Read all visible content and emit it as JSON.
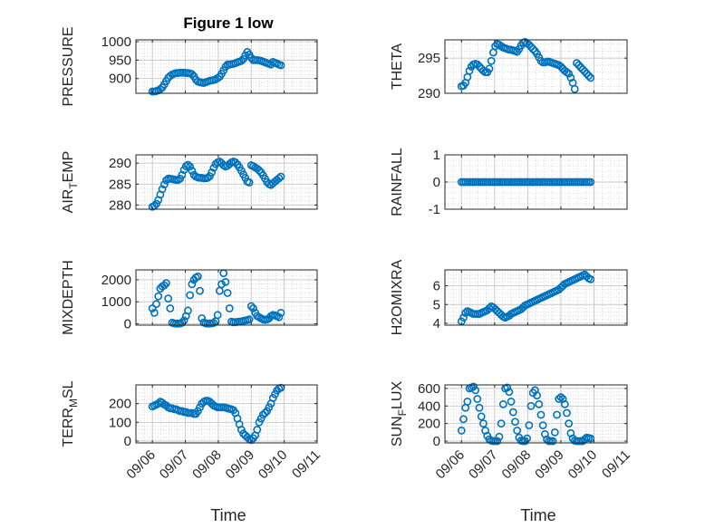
{
  "figure_title": "Figure 1 low",
  "colors": {
    "marker": "#0072BD",
    "axis": "#262626",
    "grid": "#d4d4d4",
    "background": "#ffffff"
  },
  "chart_data": [
    {
      "type": "scatter",
      "ylabel": "PRESSURE",
      "ylim": [
        860,
        1005
      ],
      "yticks": [
        900,
        950,
        1000
      ],
      "grid": true,
      "x": [
        0.0,
        0.06,
        0.12,
        0.18,
        0.24,
        0.3,
        0.36,
        0.42,
        0.48,
        0.54,
        0.6,
        0.66,
        0.72,
        0.78,
        0.84,
        0.9,
        0.96,
        1.02,
        1.08,
        1.14,
        1.2,
        1.26,
        1.32,
        1.38,
        1.44,
        1.5,
        1.56,
        1.62,
        1.68,
        1.74,
        1.8,
        1.86,
        1.92,
        1.98,
        2.04,
        2.1,
        2.16,
        2.22,
        2.28,
        2.34,
        2.4,
        2.46,
        2.52,
        2.58,
        2.64,
        2.7,
        2.76,
        2.82,
        2.88,
        2.94,
        3.0,
        3.06,
        3.12,
        3.18,
        3.24,
        3.3,
        3.36,
        3.42,
        3.48,
        3.54,
        3.6,
        3.66,
        3.72,
        3.78,
        3.84,
        3.9
      ],
      "values": [
        865,
        865,
        866,
        868,
        871,
        876,
        884,
        893,
        902,
        907,
        911,
        913,
        915,
        915,
        916,
        916,
        916,
        915,
        915,
        914,
        912,
        906,
        897,
        892,
        890,
        889,
        888,
        890,
        892,
        894,
        895,
        896,
        898,
        901,
        905,
        913,
        922,
        932,
        938,
        938,
        939,
        940,
        942,
        944,
        946,
        948,
        953,
        963,
        972,
        965,
        956,
        950,
        950,
        950,
        949,
        948,
        946,
        944,
        942,
        940,
        938,
        945,
        943,
        941,
        938,
        936
      ],
      "xticks": [
        "09/06",
        "09/07",
        "09/08",
        "09/09",
        "09/10",
        "09/11"
      ]
    },
    {
      "type": "scatter",
      "ylabel": "THETA",
      "ylim": [
        290,
        297.6
      ],
      "yticks": [
        290,
        295
      ],
      "grid": true,
      "x": [
        0.0,
        0.06,
        0.12,
        0.18,
        0.24,
        0.3,
        0.36,
        0.42,
        0.48,
        0.54,
        0.6,
        0.66,
        0.72,
        0.78,
        0.84,
        0.9,
        0.96,
        1.02,
        1.08,
        1.14,
        1.2,
        1.26,
        1.32,
        1.38,
        1.44,
        1.5,
        1.56,
        1.62,
        1.68,
        1.74,
        1.8,
        1.86,
        1.92,
        1.98,
        2.04,
        2.1,
        2.16,
        2.22,
        2.28,
        2.34,
        2.4,
        2.46,
        2.52,
        2.58,
        2.64,
        2.7,
        2.76,
        2.82,
        2.88,
        2.94,
        3.0,
        3.06,
        3.12,
        3.18,
        3.24,
        3.3,
        3.36,
        3.42,
        3.48,
        3.54,
        3.6,
        3.66,
        3.72,
        3.78,
        3.84,
        3.9
      ],
      "values": [
        291.0,
        291.1,
        291.5,
        292.3,
        293.2,
        293.8,
        294.1,
        294.2,
        294.1,
        293.8,
        293.5,
        293.2,
        293.0,
        293.0,
        293.5,
        294.6,
        295.8,
        296.7,
        297.0,
        296.9,
        296.7,
        296.5,
        296.4,
        296.3,
        296.2,
        296.2,
        296.1,
        296.0,
        295.9,
        296.3,
        296.8,
        297.2,
        297.3,
        297.1,
        296.9,
        296.6,
        296.3,
        296.0,
        295.6,
        295.1,
        294.6,
        294.4,
        294.4,
        294.5,
        294.5,
        294.4,
        294.3,
        294.2,
        294.1,
        294.0,
        293.8,
        293.5,
        293.2,
        293.0,
        292.8,
        292.2,
        291.5,
        290.6,
        294.3,
        294.0,
        293.7,
        293.4,
        293.1,
        292.8,
        292.5,
        292.2
      ],
      "xticks": [
        "09/06",
        "09/07",
        "09/08",
        "09/09",
        "09/10",
        "09/11"
      ]
    },
    {
      "type": "scatter",
      "ylabel": "AIR_TEMP",
      "ylim": [
        279,
        292
      ],
      "yticks": [
        280,
        285,
        290
      ],
      "grid": true,
      "x": [
        0.0,
        0.06,
        0.12,
        0.18,
        0.24,
        0.3,
        0.36,
        0.42,
        0.48,
        0.54,
        0.6,
        0.66,
        0.72,
        0.78,
        0.84,
        0.9,
        0.96,
        1.02,
        1.08,
        1.14,
        1.2,
        1.26,
        1.32,
        1.38,
        1.44,
        1.5,
        1.56,
        1.62,
        1.68,
        1.74,
        1.8,
        1.86,
        1.92,
        1.98,
        2.04,
        2.1,
        2.16,
        2.22,
        2.28,
        2.34,
        2.4,
        2.46,
        2.52,
        2.58,
        2.64,
        2.7,
        2.76,
        2.82,
        2.88,
        2.94,
        3.0,
        3.06,
        3.12,
        3.18,
        3.24,
        3.3,
        3.36,
        3.42,
        3.48,
        3.54,
        3.6,
        3.66,
        3.72,
        3.78,
        3.84,
        3.9
      ],
      "values": [
        279.6,
        279.8,
        280.3,
        281.2,
        282.5,
        283.8,
        284.9,
        285.9,
        286.3,
        286.3,
        286.2,
        286.1,
        286.0,
        286.0,
        286.3,
        287.2,
        288.4,
        289.3,
        289.6,
        289.2,
        288.2,
        287.2,
        286.8,
        286.6,
        286.5,
        286.5,
        286.4,
        286.4,
        286.5,
        286.9,
        287.8,
        288.9,
        289.8,
        290.2,
        290.4,
        290.0,
        289.5,
        289.2,
        289.4,
        289.8,
        290.2,
        290.4,
        290.2,
        289.7,
        289.0,
        288.2,
        287.3,
        286.5,
        285.6,
        285.4,
        289.5,
        289.3,
        289.0,
        288.7,
        288.3,
        287.8,
        287.1,
        286.3,
        285.5,
        285.0,
        284.8,
        285.2,
        285.6,
        286.0,
        286.4,
        286.8
      ],
      "xticks": [
        "09/06",
        "09/07",
        "09/08",
        "09/09",
        "09/10",
        "09/11"
      ]
    },
    {
      "type": "scatter",
      "ylabel": "RAINFALL",
      "ylim": [
        -1,
        1
      ],
      "yticks": [
        -1,
        0,
        1
      ],
      "grid": true,
      "x": [
        0.0,
        0.06,
        0.12,
        0.18,
        0.24,
        0.3,
        0.36,
        0.42,
        0.48,
        0.54,
        0.6,
        0.66,
        0.72,
        0.78,
        0.84,
        0.9,
        0.96,
        1.02,
        1.08,
        1.14,
        1.2,
        1.26,
        1.32,
        1.38,
        1.44,
        1.5,
        1.56,
        1.62,
        1.68,
        1.74,
        1.8,
        1.86,
        1.92,
        1.98,
        2.04,
        2.1,
        2.16,
        2.22,
        2.28,
        2.34,
        2.4,
        2.46,
        2.52,
        2.58,
        2.64,
        2.7,
        2.76,
        2.82,
        2.88,
        2.94,
        3.0,
        3.06,
        3.12,
        3.18,
        3.24,
        3.3,
        3.36,
        3.42,
        3.48,
        3.54,
        3.6,
        3.66,
        3.72,
        3.78,
        3.84,
        3.9
      ],
      "values": [
        0,
        0,
        0,
        0,
        0,
        0,
        0,
        0,
        0,
        0,
        0,
        0,
        0,
        0,
        0,
        0,
        0,
        0,
        0,
        0,
        0,
        0,
        0,
        0,
        0,
        0,
        0,
        0,
        0,
        0,
        0,
        0,
        0,
        0,
        0,
        0,
        0,
        0,
        0,
        0,
        0,
        0,
        0,
        0,
        0,
        0,
        0,
        0,
        0,
        0,
        0,
        0,
        0,
        0,
        0,
        0,
        0,
        0,
        0,
        0,
        0,
        0,
        0,
        0,
        0,
        0
      ],
      "xticks": [
        "09/06",
        "09/07",
        "09/08",
        "09/09",
        "09/10",
        "09/11"
      ]
    },
    {
      "type": "scatter",
      "ylabel": "MIXDEPTH",
      "ylim": [
        -60,
        2450
      ],
      "yticks": [
        0,
        1000,
        2000
      ],
      "grid": true,
      "x": [
        0.0,
        0.06,
        0.12,
        0.18,
        0.24,
        0.3,
        0.36,
        0.42,
        0.48,
        0.54,
        0.6,
        0.66,
        0.72,
        0.78,
        0.84,
        0.9,
        0.96,
        1.02,
        1.08,
        1.14,
        1.2,
        1.26,
        1.32,
        1.38,
        1.44,
        1.5,
        1.56,
        1.62,
        1.68,
        1.74,
        1.8,
        1.86,
        1.92,
        1.98,
        2.04,
        2.1,
        2.16,
        2.22,
        2.28,
        2.34,
        2.4,
        2.46,
        2.52,
        2.58,
        2.64,
        2.7,
        2.76,
        2.82,
        2.88,
        2.94,
        3.0,
        3.06,
        3.12,
        3.18,
        3.24,
        3.3,
        3.36,
        3.42,
        3.48,
        3.54,
        3.6,
        3.66,
        3.72,
        3.78,
        3.84,
        3.9
      ],
      "values": [
        700,
        500,
        900,
        1250,
        1600,
        1700,
        1750,
        1850,
        1150,
        700,
        50,
        20,
        10,
        10,
        20,
        50,
        150,
        350,
        600,
        1300,
        1800,
        2000,
        2100,
        2150,
        1500,
        250,
        60,
        20,
        10,
        15,
        20,
        40,
        120,
        400,
        1500,
        1800,
        2300,
        1900,
        1400,
        700,
        100,
        70,
        80,
        90,
        100,
        110,
        130,
        150,
        170,
        200,
        800,
        700,
        500,
        350,
        300,
        250,
        200,
        180,
        200,
        250,
        350,
        400,
        380,
        350,
        300,
        500
      ],
      "xticks": [
        "09/06",
        "09/07",
        "09/08",
        "09/09",
        "09/10",
        "09/11"
      ]
    },
    {
      "type": "scatter",
      "ylabel": "H2OMIXRA",
      "ylim": [
        3.9,
        6.85
      ],
      "yticks": [
        4,
        5,
        6
      ],
      "grid": true,
      "x": [
        0.0,
        0.06,
        0.12,
        0.18,
        0.24,
        0.3,
        0.36,
        0.42,
        0.48,
        0.54,
        0.6,
        0.66,
        0.72,
        0.78,
        0.84,
        0.9,
        0.96,
        1.02,
        1.08,
        1.14,
        1.2,
        1.26,
        1.32,
        1.38,
        1.44,
        1.5,
        1.56,
        1.62,
        1.68,
        1.74,
        1.8,
        1.86,
        1.92,
        1.98,
        2.04,
        2.1,
        2.16,
        2.22,
        2.28,
        2.34,
        2.4,
        2.46,
        2.52,
        2.58,
        2.64,
        2.7,
        2.76,
        2.82,
        2.88,
        2.94,
        3.0,
        3.06,
        3.12,
        3.18,
        3.24,
        3.3,
        3.36,
        3.42,
        3.48,
        3.54,
        3.6,
        3.66,
        3.72,
        3.78,
        3.84,
        3.9
      ],
      "values": [
        4.1,
        4.3,
        4.55,
        4.65,
        4.6,
        4.55,
        4.5,
        4.5,
        4.5,
        4.5,
        4.55,
        4.6,
        4.65,
        4.7,
        4.8,
        4.9,
        4.85,
        4.75,
        4.65,
        4.55,
        4.45,
        4.35,
        4.3,
        4.35,
        4.4,
        4.5,
        4.55,
        4.6,
        4.65,
        4.7,
        4.75,
        4.85,
        4.95,
        5.0,
        5.05,
        5.1,
        5.15,
        5.2,
        5.25,
        5.3,
        5.35,
        5.4,
        5.45,
        5.5,
        5.55,
        5.6,
        5.65,
        5.7,
        5.75,
        5.8,
        5.9,
        6.0,
        6.1,
        6.15,
        6.2,
        6.25,
        6.3,
        6.35,
        6.4,
        6.45,
        6.5,
        6.55,
        6.6,
        6.5,
        6.4,
        6.35
      ],
      "xticks": [
        "09/06",
        "09/07",
        "09/08",
        "09/09",
        "09/10",
        "09/11"
      ]
    },
    {
      "type": "scatter",
      "ylabel": "TERR_MSL",
      "ylim": [
        -10,
        300
      ],
      "yticks": [
        0,
        100,
        200
      ],
      "grid": true,
      "x": [
        0.0,
        0.06,
        0.12,
        0.18,
        0.24,
        0.3,
        0.36,
        0.42,
        0.48,
        0.54,
        0.6,
        0.66,
        0.72,
        0.78,
        0.84,
        0.9,
        0.96,
        1.02,
        1.08,
        1.14,
        1.2,
        1.26,
        1.32,
        1.38,
        1.44,
        1.5,
        1.56,
        1.62,
        1.68,
        1.74,
        1.8,
        1.86,
        1.92,
        1.98,
        2.04,
        2.1,
        2.16,
        2.22,
        2.28,
        2.34,
        2.4,
        2.46,
        2.52,
        2.58,
        2.64,
        2.7,
        2.76,
        2.82,
        2.88,
        2.94,
        3.0,
        3.06,
        3.12,
        3.18,
        3.24,
        3.3,
        3.36,
        3.42,
        3.48,
        3.54,
        3.6,
        3.66,
        3.72,
        3.78,
        3.84,
        3.9
      ],
      "values": [
        185,
        190,
        195,
        200,
        210,
        205,
        195,
        190,
        180,
        175,
        175,
        170,
        170,
        165,
        160,
        160,
        155,
        155,
        150,
        150,
        150,
        145,
        145,
        160,
        180,
        200,
        210,
        215,
        215,
        210,
        200,
        190,
        185,
        180,
        180,
        180,
        180,
        178,
        175,
        172,
        170,
        165,
        150,
        120,
        90,
        60,
        40,
        30,
        20,
        10,
        5,
        15,
        30,
        60,
        100,
        120,
        140,
        150,
        160,
        180,
        200,
        230,
        250,
        270,
        280,
        285
      ],
      "xticks": [
        "09/06",
        "09/07",
        "09/08",
        "09/09",
        "09/10",
        "09/11"
      ]
    },
    {
      "type": "scatter",
      "ylabel": "SUN_FLUX",
      "ylim": [
        -20,
        640
      ],
      "yticks": [
        0,
        200,
        400,
        600
      ],
      "grid": true,
      "x": [
        0.0,
        0.06,
        0.12,
        0.18,
        0.24,
        0.3,
        0.36,
        0.42,
        0.48,
        0.54,
        0.6,
        0.66,
        0.72,
        0.78,
        0.84,
        0.9,
        0.96,
        1.02,
        1.08,
        1.14,
        1.2,
        1.26,
        1.32,
        1.38,
        1.44,
        1.5,
        1.56,
        1.62,
        1.68,
        1.74,
        1.8,
        1.86,
        1.92,
        1.98,
        2.04,
        2.1,
        2.16,
        2.22,
        2.28,
        2.34,
        2.4,
        2.46,
        2.52,
        2.58,
        2.64,
        2.7,
        2.76,
        2.82,
        2.88,
        2.94,
        3.0,
        3.06,
        3.12,
        3.18,
        3.24,
        3.3,
        3.36,
        3.42,
        3.48,
        3.54,
        3.6,
        3.66,
        3.72,
        3.78,
        3.84,
        3.9
      ],
      "values": [
        120,
        250,
        380,
        450,
        600,
        610,
        620,
        580,
        480,
        380,
        280,
        200,
        120,
        60,
        20,
        5,
        0,
        0,
        0,
        50,
        200,
        420,
        600,
        610,
        560,
        450,
        330,
        220,
        120,
        40,
        5,
        0,
        0,
        30,
        180,
        400,
        550,
        580,
        520,
        420,
        300,
        180,
        80,
        20,
        0,
        0,
        0,
        100,
        300,
        480,
        500,
        480,
        420,
        320,
        200,
        90,
        30,
        5,
        0,
        0,
        0,
        0,
        20,
        40,
        35,
        30
      ],
      "xticks": [
        "09/06",
        "09/07",
        "09/08",
        "09/09",
        "09/10",
        "09/11"
      ]
    }
  ],
  "xlabels": {
    "left": "Time",
    "right": "Time"
  }
}
